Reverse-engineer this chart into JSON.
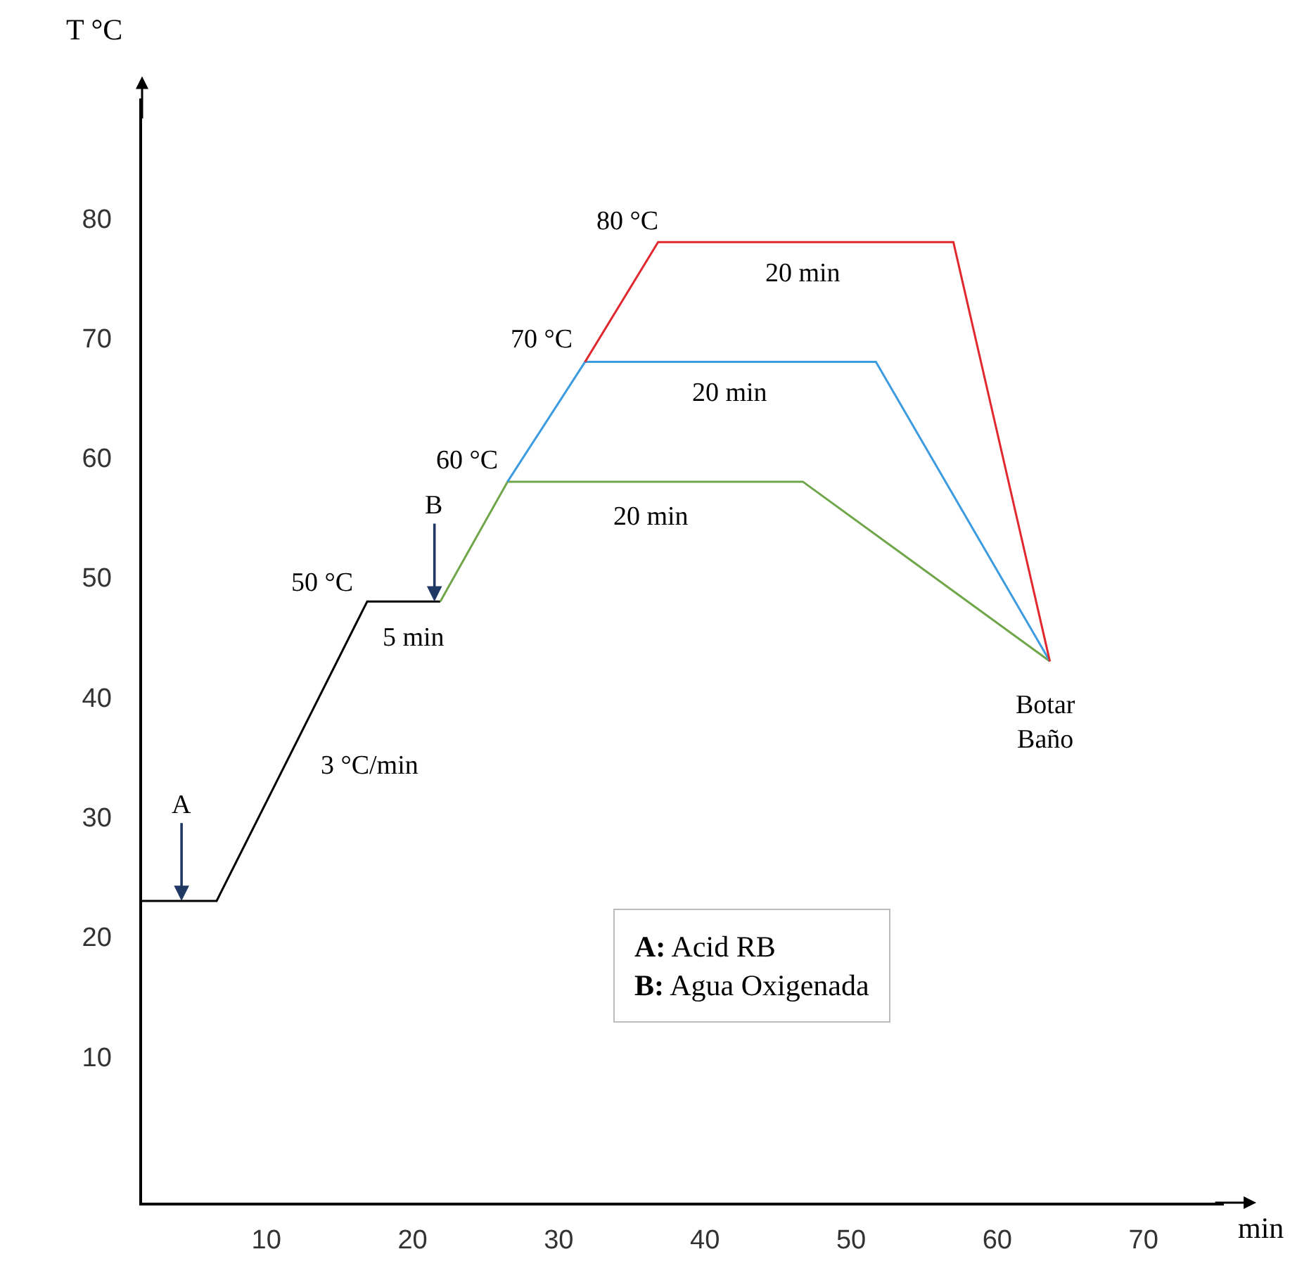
{
  "chart_data": {
    "type": "line",
    "xlabel": "min",
    "ylabel": "T °C",
    "xlim": [
      1.5,
      75.5
    ],
    "ylim": [
      -2.2,
      90
    ],
    "xticks": [
      10,
      20,
      30,
      40,
      50,
      60,
      70
    ],
    "yticks": [
      10,
      20,
      30,
      40,
      50,
      60,
      70,
      80
    ],
    "grid": false,
    "marker": "none",
    "line_style": "solid",
    "series": [
      {
        "color": "#000000",
        "x": [
          1.5,
          6.6,
          16.9,
          21.9
        ],
        "values": [
          23,
          23,
          48,
          48
        ]
      },
      {
        "color": "#70a64a",
        "x": [
          21.9,
          26.5,
          46.7,
          63.6
        ],
        "values": [
          48,
          58,
          58,
          43
        ]
      },
      {
        "color": "#3d9be0",
        "x": [
          26.5,
          31.8,
          51.7,
          63.6
        ],
        "values": [
          58,
          68,
          68,
          43
        ]
      },
      {
        "color": "#e0282e",
        "x": [
          31.8,
          36.8,
          57,
          63.6
        ],
        "values": [
          68,
          78,
          78,
          43
        ]
      }
    ],
    "annotations": [
      "80 °C",
      "70 °C",
      "60 °C",
      "50 °C",
      "20 min",
      "20 min",
      "20 min",
      "5 min",
      "3 °C/min",
      "Botar\nBaño",
      {
        "text": "A",
        "x": 4.2,
        "y": 23
      },
      {
        "text": "B",
        "x": 21.5,
        "y": 48
      },
      "A: Acid RB\nB: Agua Oxigenada"
    ]
  }
}
